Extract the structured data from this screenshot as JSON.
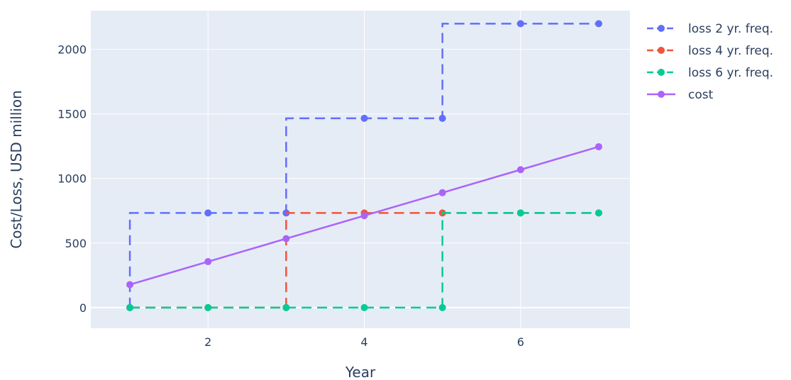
{
  "chart_data": {
    "type": "line",
    "xlabel": "Year",
    "ylabel": "Cost/Loss, USD million",
    "xlim": [
      0.5,
      7.4
    ],
    "ylim": [
      -160,
      2300
    ],
    "xticks": [
      2,
      4,
      6
    ],
    "yticks": [
      0,
      500,
      1000,
      1500,
      2000
    ],
    "grid": true,
    "legend_position": "top-right",
    "plot_background": "#e5ecf6",
    "series": [
      {
        "name": "loss 2 yr. freq.",
        "color": "#636efa",
        "dash": "dash",
        "shape": "step-vh",
        "x": [
          1,
          2,
          3,
          4,
          5,
          6,
          7
        ],
        "y": [
          0,
          733,
          733,
          1466,
          1466,
          2199,
          2199
        ]
      },
      {
        "name": "loss 4 yr. freq.",
        "color": "#ef553b",
        "dash": "dash",
        "shape": "step-vh",
        "x": [
          1,
          2,
          3,
          4,
          5,
          6,
          7
        ],
        "y": [
          0,
          0,
          0,
          733,
          733,
          733,
          733
        ]
      },
      {
        "name": "loss 6 yr. freq.",
        "color": "#00cc96",
        "dash": "dash",
        "shape": "step-vh",
        "x": [
          1,
          2,
          3,
          4,
          5,
          6,
          7
        ],
        "y": [
          0,
          0,
          0,
          0,
          0,
          733,
          733
        ]
      },
      {
        "name": "cost",
        "color": "#ab63fa",
        "dash": "solid",
        "shape": "linear",
        "x": [
          1,
          2,
          3,
          4,
          5,
          6,
          7
        ],
        "y": [
          178,
          356,
          534,
          712,
          890,
          1068,
          1246
        ]
      }
    ]
  }
}
